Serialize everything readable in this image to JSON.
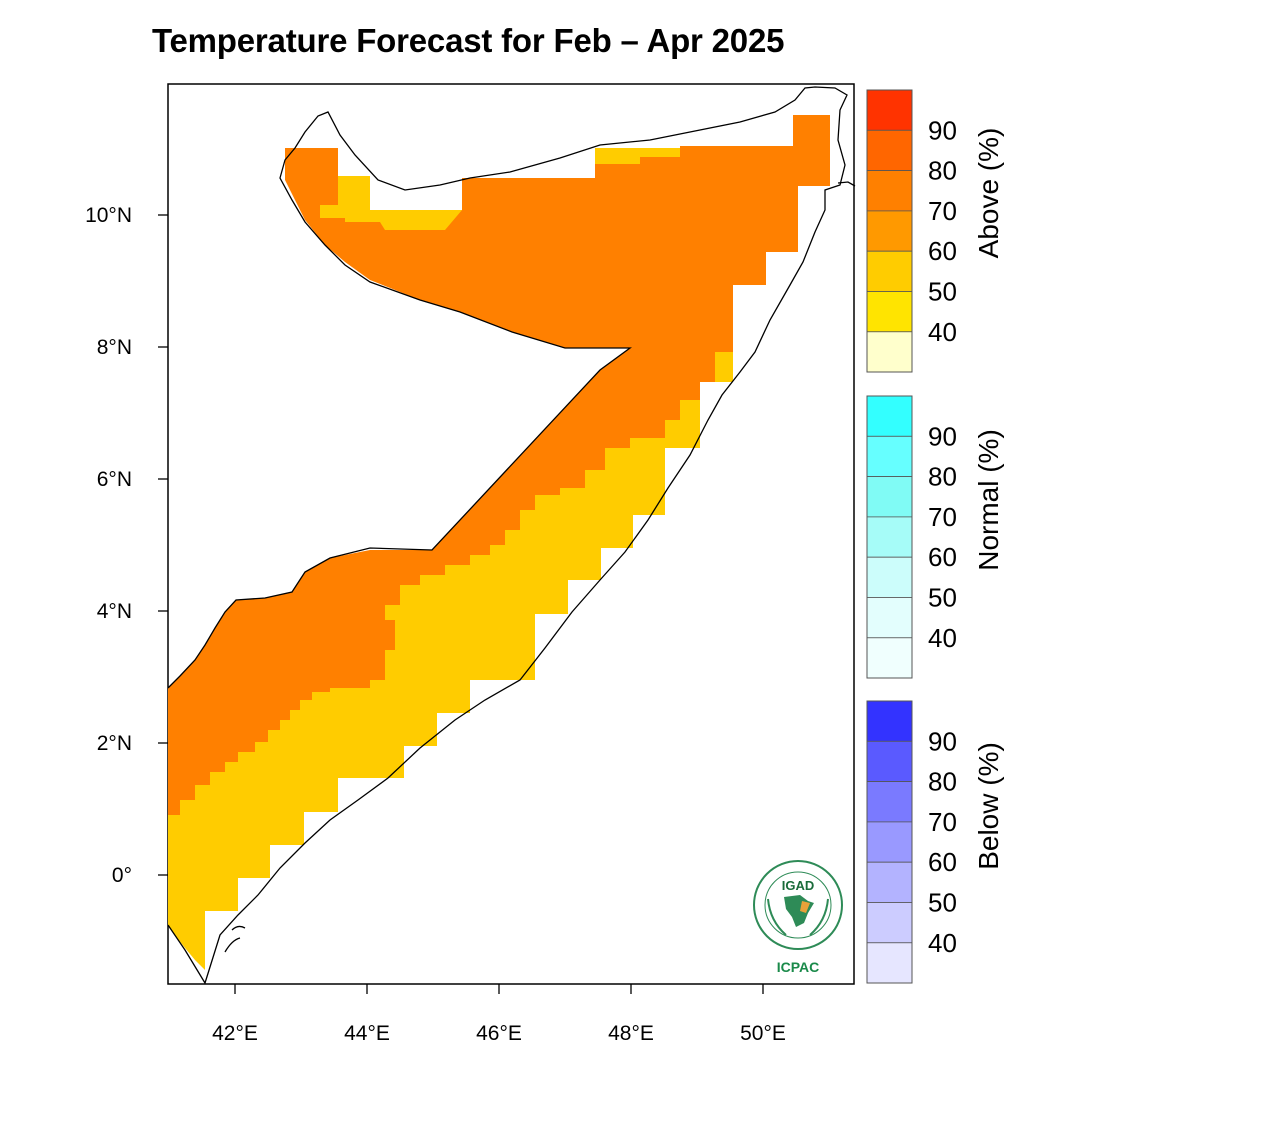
{
  "title": "Temperature Forecast for Feb – Apr 2025",
  "map": {
    "x_ticks": [
      "42°E",
      "44°E",
      "46°E",
      "48°E",
      "50°E"
    ],
    "y_ticks": [
      "10°N",
      "8°N",
      "6°N",
      "4°N",
      "2°N",
      "0°"
    ],
    "forecast_regions": [
      {
        "category": "Above",
        "probability_bin": "70-80",
        "color": "#ff8000",
        "area": "north and central interior"
      },
      {
        "category": "Above",
        "probability_bin": "50-60",
        "color": "#ffcc00",
        "area": "southern and coastal strip, northern coast pocket, northeast tip"
      }
    ]
  },
  "colorbars": [
    {
      "title": "Above (%)",
      "labels": [
        "90",
        "80",
        "70",
        "60",
        "50",
        "40"
      ],
      "colors": [
        "#ff3300",
        "#ff6600",
        "#ff8000",
        "#ff9900",
        "#ffcc00",
        "#ffe400",
        "#ffffcc"
      ]
    },
    {
      "title": "Normal (%)",
      "labels": [
        "90",
        "80",
        "70",
        "60",
        "50",
        "40"
      ],
      "colors": [
        "#33ffff",
        "#66ffff",
        "#80fbf5",
        "#a6fcf8",
        "#ccfdfb",
        "#e3fefd",
        "#f0fffe"
      ]
    },
    {
      "title": "Below (%)",
      "labels": [
        "90",
        "80",
        "70",
        "60",
        "50",
        "40"
      ],
      "colors": [
        "#3333ff",
        "#5a5aff",
        "#7a7aff",
        "#9999ff",
        "#b3b3ff",
        "#ccccff",
        "#e6e6ff"
      ]
    }
  ],
  "logo": {
    "top_text": "IGAD",
    "bottom_text": "ICPAC",
    "ring_color": "#2e8b57"
  }
}
